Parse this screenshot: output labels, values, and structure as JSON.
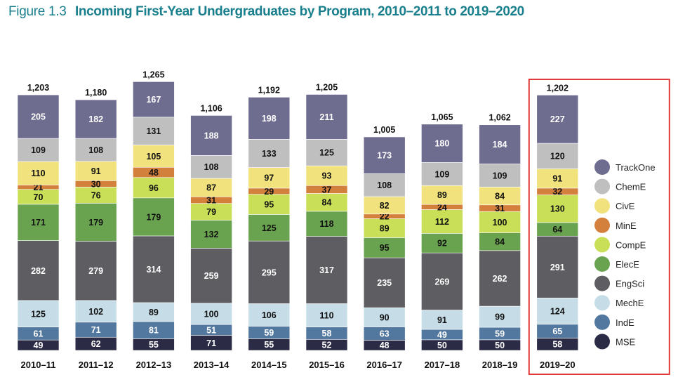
{
  "figure_label": "Figure 1.3",
  "chart_data": {
    "type": "bar",
    "stacked": true,
    "title": "Incoming First-Year Undergraduates by Program, 2010–2011 to 2019–2020",
    "categories": [
      "2010–11",
      "2011–12",
      "2012–13",
      "2013–14",
      "2014–15",
      "2015–16",
      "2016–17",
      "2017–18",
      "2018–19",
      "2019–20"
    ],
    "totals": [
      1203,
      1180,
      1265,
      1106,
      1192,
      1205,
      1005,
      1065,
      1062,
      1202
    ],
    "total_labels": [
      "1,203",
      "1,180",
      "1,265",
      "1,106",
      "1,192",
      "1,205",
      "1,005",
      "1,065",
      "1,062",
      "1,202"
    ],
    "series": [
      {
        "name": "MSE",
        "color": "#2b2b45",
        "label_color": "#ffffff",
        "values": [
          49,
          62,
          55,
          71,
          55,
          52,
          48,
          50,
          50,
          58
        ]
      },
      {
        "name": "IndE",
        "color": "#52789f",
        "label_color": "#ffffff",
        "values": [
          61,
          71,
          81,
          51,
          59,
          58,
          63,
          49,
          59,
          65
        ]
      },
      {
        "name": "MechE",
        "color": "#c6dde8",
        "label_color": "#111111",
        "values": [
          125,
          102,
          89,
          100,
          106,
          110,
          90,
          91,
          99,
          124
        ]
      },
      {
        "name": "EngSci",
        "color": "#5e5e62",
        "label_color": "#ffffff",
        "values": [
          282,
          279,
          314,
          259,
          295,
          317,
          235,
          269,
          262,
          291
        ]
      },
      {
        "name": "ElecE",
        "color": "#6aa34f",
        "label_color": "#111111",
        "values": [
          171,
          179,
          179,
          132,
          125,
          118,
          95,
          92,
          84,
          64
        ]
      },
      {
        "name": "CompE",
        "color": "#cadf58",
        "label_color": "#111111",
        "values": [
          70,
          76,
          96,
          79,
          95,
          84,
          89,
          112,
          100,
          130
        ]
      },
      {
        "name": "MinE",
        "color": "#d4803d",
        "label_color": "#111111",
        "values": [
          21,
          30,
          48,
          31,
          29,
          37,
          22,
          24,
          31,
          32
        ]
      },
      {
        "name": "CivE",
        "color": "#f1e27d",
        "label_color": "#111111",
        "values": [
          110,
          91,
          105,
          87,
          97,
          93,
          82,
          89,
          84,
          91
        ]
      },
      {
        "name": "ChemE",
        "color": "#bfbfbf",
        "label_color": "#111111",
        "values": [
          109,
          108,
          131,
          108,
          133,
          125,
          108,
          109,
          109,
          120
        ]
      },
      {
        "name": "TrackOne",
        "color": "#6e6c8f",
        "label_color": "#ffffff",
        "values": [
          205,
          182,
          167,
          188,
          198,
          211,
          173,
          180,
          184,
          227
        ]
      }
    ],
    "legend": [
      "TrackOne",
      "ChemE",
      "CivE",
      "MinE",
      "CompE",
      "ElecE",
      "EngSci",
      "MechE",
      "IndE",
      "MSE"
    ],
    "legend_position": "right",
    "highlighted_category": "2019–20",
    "highlight_color": "#e03a3a",
    "xlabel": "",
    "ylabel": "",
    "grid": false
  }
}
